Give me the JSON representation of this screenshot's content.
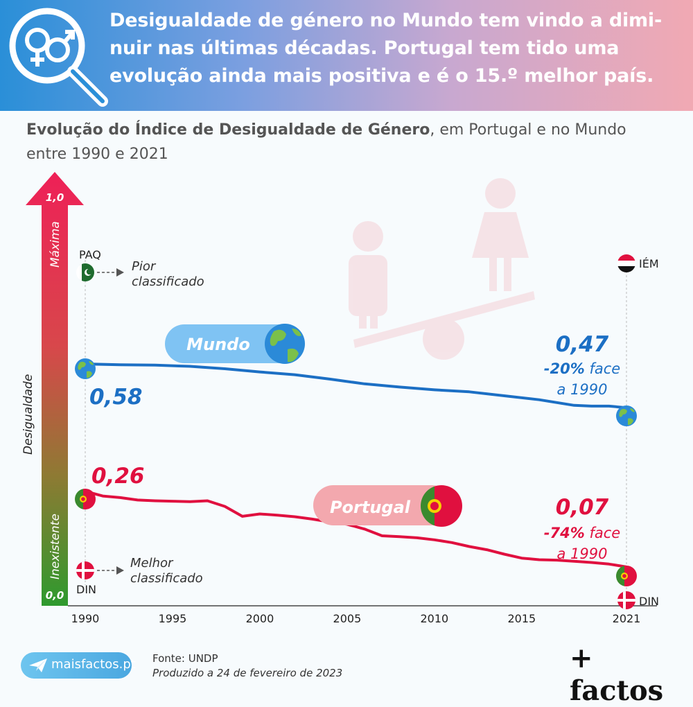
{
  "header": {
    "title": "Desigualdade de género no Mundo tem vindo a dimi-nuir nas últimas décadas. Portugal tem tido uma evolução ainda mais positiva e é o 15.º melhor país.",
    "icon": "gender-search-icon"
  },
  "subtitle": {
    "bold": "Evolução do Índice de Desigualdade de Género",
    "rest": ", em Portugal e no Mundo entre 1990 e 2021"
  },
  "chart_data": {
    "type": "line",
    "xlabel": "",
    "ylabel": "Desigualdade",
    "ylim": [
      0,
      1
    ],
    "xlim": [
      1990,
      2021
    ],
    "x_ticks": [
      "1990",
      "1995",
      "2000",
      "2005",
      "2010",
      "2015",
      "2021"
    ],
    "y_ticks": [
      "0,0",
      "1,0"
    ],
    "y_scale_labels": {
      "top": "Máxima",
      "bottom": "Inexistente"
    },
    "series": [
      {
        "name": "Mundo",
        "color": "#1c6fc4",
        "x": [
          1990,
          1992,
          1994,
          1996,
          1998,
          2000,
          2002,
          2004,
          2006,
          2008,
          2010,
          2012,
          2014,
          2016,
          2018,
          2019,
          2020,
          2021
        ],
        "y": [
          0.58,
          0.578,
          0.577,
          0.574,
          0.568,
          0.56,
          0.553,
          0.542,
          0.53,
          0.522,
          0.515,
          0.51,
          0.5,
          0.49,
          0.476,
          0.474,
          0.474,
          0.47
        ],
        "start_label": "0,58",
        "end_label": "0,47",
        "change_pct": "-20%",
        "change_text": "face a 1990"
      },
      {
        "name": "Portugal",
        "color": "#e0103f",
        "x": [
          1990,
          1991,
          1992,
          1993,
          1994,
          1995,
          1996,
          1997,
          1998,
          1999,
          2000,
          2001,
          2002,
          2003,
          2004,
          2005,
          2006,
          2007,
          2008,
          2009,
          2010,
          2011,
          2012,
          2013,
          2014,
          2015,
          2016,
          2017,
          2018,
          2019,
          2020,
          2021
        ],
        "y": [
          0.26,
          0.248,
          0.244,
          0.238,
          0.236,
          0.235,
          0.234,
          0.236,
          0.222,
          0.197,
          0.203,
          0.2,
          0.196,
          0.19,
          0.183,
          0.177,
          0.165,
          0.148,
          0.146,
          0.143,
          0.138,
          0.131,
          0.121,
          0.113,
          0.102,
          0.092,
          0.088,
          0.087,
          0.084,
          0.081,
          0.077,
          0.07
        ],
        "start_label": "0,26",
        "end_label": "0,07",
        "change_pct": "-74%",
        "change_text": "face a 1990"
      }
    ],
    "reference_points": {
      "worst": {
        "label": "PAQ",
        "text": "Pior classificado",
        "year": 1990,
        "value": 0.83
      },
      "best": {
        "label": "DIN",
        "text": "Melhor classificado",
        "year": 1990,
        "value": 0.02
      },
      "worst_2021": {
        "label": "IÉM",
        "year": 2021,
        "value": 0.82
      },
      "best_2021": {
        "label": "DIN",
        "year": 2021,
        "value": 0.013
      }
    }
  },
  "footer": {
    "site": "maisfactos.pt",
    "source": "Fonte: UNDP",
    "produced": "Produzido a 24 de fevereiro de 2023",
    "brand": "+ factos"
  },
  "colors": {
    "world": "#1c6fc4",
    "portugal": "#e0103f",
    "header_start": "#2a8fd8",
    "header_end": "#f1a9b3"
  }
}
